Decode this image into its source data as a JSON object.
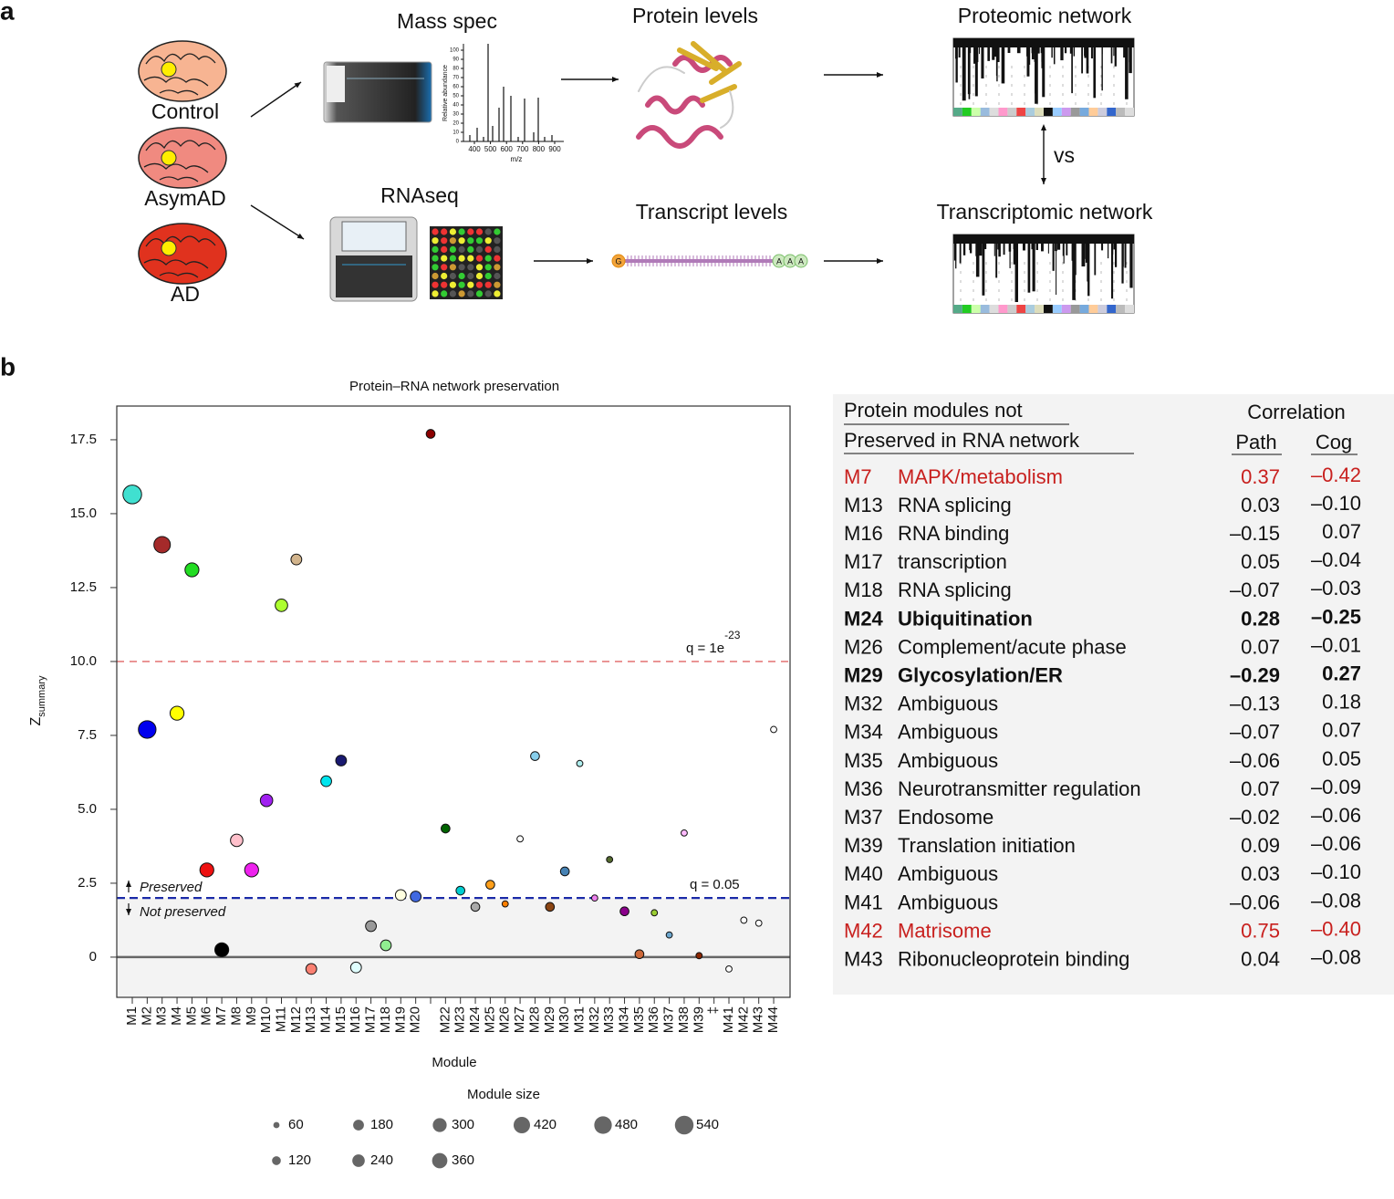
{
  "panel_a": {
    "label": "a",
    "groups": [
      "Control",
      "AsymAD",
      "AD"
    ],
    "mass_spec": {
      "title": "Mass spec",
      "spectrum": {
        "x_label": "m/z",
        "y_label": "Relative abundance",
        "xticks": [
          400,
          500,
          600,
          700,
          800,
          900
        ],
        "yticks": [
          0,
          10,
          20,
          30,
          40,
          50,
          60,
          70,
          80,
          90,
          100
        ]
      }
    },
    "rnaseq": "RNAseq",
    "protein_levels": "Protein levels",
    "transcript_levels": "Transcript levels",
    "transcript_bases": [
      "G",
      "A",
      "A",
      "A"
    ],
    "proteomic_network": "Proteomic network",
    "transcriptomic_network": "Transcriptomic network",
    "comparison": "vs"
  },
  "panel_b_label": "b",
  "chart_data": {
    "type": "scatter",
    "title": "Protein–RNA network preservation",
    "x_label": "Module",
    "y_label": "Z",
    "y_label_sub": "summary",
    "categories": [
      "M1",
      "M2",
      "M3",
      "M4",
      "M5",
      "M6",
      "M7",
      "M8",
      "M9",
      "M10",
      "M11",
      "M12",
      "M13",
      "M14",
      "M15",
      "M16",
      "M17",
      "M18",
      "M19",
      "M20",
      null,
      "M22",
      "M23",
      "M24",
      "M25",
      "M26",
      "M27",
      "M28",
      "M29",
      "M30",
      "M31",
      "M32",
      "M33",
      "M34",
      "M35",
      "M36",
      "M37",
      "M38",
      "M39",
      "‡",
      "M41",
      "M42",
      "M43",
      "M44"
    ],
    "values": [
      15.65,
      7.7,
      13.95,
      8.25,
      13.1,
      2.95,
      0.25,
      3.95,
      2.95,
      5.3,
      11.9,
      13.45,
      -0.4,
      5.95,
      6.65,
      -0.35,
      1.05,
      0.4,
      2.1,
      2.05,
      17.7,
      4.35,
      2.25,
      1.7,
      2.45,
      1.8,
      4.0,
      6.8,
      1.7,
      2.9,
      6.55,
      2.0,
      3.3,
      1.55,
      0.1,
      1.5,
      0.75,
      4.2,
      0.05,
      null,
      -0.4,
      1.25,
      1.15,
      7.7
    ],
    "sizes": [
      540,
      480,
      420,
      300,
      300,
      300,
      300,
      240,
      300,
      240,
      240,
      180,
      180,
      180,
      180,
      180,
      180,
      180,
      180,
      180,
      120,
      120,
      120,
      120,
      120,
      60,
      60,
      120,
      120,
      120,
      60,
      60,
      60,
      120,
      120,
      60,
      60,
      60,
      60,
      null,
      60,
      60,
      60,
      60
    ],
    "colors": [
      "#40e0d0",
      "#0000ee",
      "#a52a2a",
      "#ffff00",
      "#22dd22",
      "#ee1111",
      "#000000",
      "#ffc0cb",
      "#ee22ee",
      "#a020f0",
      "#adff2f",
      "#d2b48c",
      "#fa8072",
      "#00e5ee",
      "#191970",
      "#e0ffff",
      "#999999",
      "#90ee90",
      "#ffffe0",
      "#4169e1",
      "#8b0000",
      "#006400",
      "#00ced1",
      "#a9a9a9",
      "#ff9f1a",
      "#ff7f00",
      "#ffffff",
      "#87ceeb",
      "#8b4513",
      "#4682b4",
      "#afeeee",
      "#ee82ee",
      "#556b2f",
      "#8b008b",
      "#cd6839",
      "#9acd32",
      "#6ca6cd",
      "#ffbbff",
      "#8b2500",
      null,
      "#ffffff",
      "#ffffff",
      "#ffffff",
      "#ffffff"
    ],
    "ylim": [
      -1.36,
      18.64
    ],
    "yticks": [
      0,
      2.5,
      {
        "value": 5,
        "label": "5.0"
      },
      7.5,
      {
        "value": 10,
        "label": "10.0"
      },
      12.5,
      {
        "value": 15,
        "label": "15.0"
      },
      17.5
    ],
    "zero_line": true,
    "hlines": [
      {
        "value": 10,
        "label": "q = 1e",
        "label_sup": "-23",
        "color": "#e06666"
      },
      {
        "value": 2,
        "label": "q = 0.05",
        "color": "#1a2aa8",
        "shade_below": true
      }
    ],
    "annotations": [
      "Preserved",
      "Not preserved"
    ],
    "size_legend": {
      "title": "Module size",
      "values": [
        60,
        120,
        180,
        240,
        300,
        360,
        420,
        480,
        540
      ]
    }
  },
  "table": {
    "header": {
      "line1": "Protein modules not",
      "line2": "Preserved in RNA network",
      "group": "Correlation",
      "path": "Path",
      "cog": "Cog"
    },
    "rows": [
      {
        "module": "M7",
        "function": "MAPK/metabolism",
        "path": "0.37",
        "cog": "–0.42",
        "highlight": "red"
      },
      {
        "module": "M13",
        "function": "RNA splicing",
        "path": "0.03",
        "cog": "–0.10"
      },
      {
        "module": "M16",
        "function": "RNA binding",
        "path": "–0.15",
        "cog": "0.07"
      },
      {
        "module": "M17",
        "function": "transcription",
        "path": "0.05",
        "cog": "–0.04"
      },
      {
        "module": "M18",
        "function": "RNA splicing",
        "path": "–0.07",
        "cog": "–0.03"
      },
      {
        "module": "M24",
        "function": "Ubiquitination",
        "path": "0.28",
        "cog": "–0.25",
        "highlight": "bold"
      },
      {
        "module": "M26",
        "function": "Complement/acute phase",
        "path": "0.07",
        "cog": "–0.01"
      },
      {
        "module": "M29",
        "function": "Glycosylation/ER",
        "path": "–0.29",
        "cog": "0.27",
        "highlight": "bold"
      },
      {
        "module": "M32",
        "function": "Ambiguous",
        "path": "–0.13",
        "cog": "0.18"
      },
      {
        "module": "M34",
        "function": "Ambiguous",
        "path": "–0.07",
        "cog": "0.07"
      },
      {
        "module": "M35",
        "function": "Ambiguous",
        "path": "–0.06",
        "cog": "0.05"
      },
      {
        "module": "M36",
        "function": "Neurotransmitter regulation",
        "path": "0.07",
        "cog": "–0.09"
      },
      {
        "module": "M37",
        "function": "Endosome",
        "path": "–0.02",
        "cog": "–0.06"
      },
      {
        "module": "M39",
        "function": "Translation initiation",
        "path": "0.09",
        "cog": "–0.06"
      },
      {
        "module": "M40",
        "function": "Ambiguous",
        "path": "0.03",
        "cog": "–0.10"
      },
      {
        "module": "M41",
        "function": "Ambiguous",
        "path": "–0.06",
        "cog": "–0.08"
      },
      {
        "module": "M42",
        "function": "Matrisome",
        "path": "0.75",
        "cog": "–0.40",
        "highlight": "red"
      },
      {
        "module": "M43",
        "function": "Ribonucleoprotein binding",
        "path": "0.04",
        "cog": "–0.08"
      }
    ]
  }
}
